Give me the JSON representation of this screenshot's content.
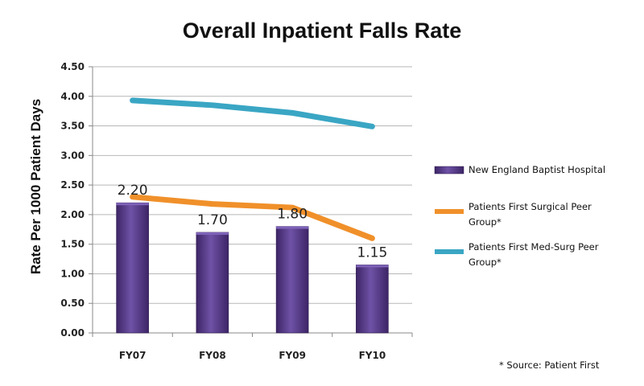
{
  "chart_data": {
    "type": "bar",
    "title": "Overall Inpatient Falls Rate",
    "xlabel": "",
    "ylabel": "Rate Per 1000 Patient Days",
    "ylim": [
      0,
      4.5
    ],
    "yticks": [
      "0.00",
      "0.50",
      "1.00",
      "1.50",
      "2.00",
      "2.50",
      "3.00",
      "3.50",
      "4.00",
      "4.50"
    ],
    "ytick_values": [
      0,
      0.5,
      1,
      1.5,
      2,
      2.5,
      3,
      3.5,
      4,
      4.5
    ],
    "grid": true,
    "legend_position": "right",
    "categories": [
      "FY07",
      "FY08",
      "FY09",
      "FY10"
    ],
    "series": [
      {
        "name": "New England Baptist Hospital",
        "type": "bar",
        "values": [
          2.2,
          1.7,
          1.8,
          1.15
        ],
        "labels": [
          "2.20",
          "1.70",
          "1.80",
          "1.15"
        ],
        "color": "#5b3f8c"
      },
      {
        "name": "Patients First Surgical Peer Group*",
        "type": "line",
        "values": [
          2.3,
          2.18,
          2.12,
          1.6
        ],
        "color": "#f0902a"
      },
      {
        "name": "Patients First Med-Surg Peer Group*",
        "type": "line",
        "values": [
          3.93,
          3.85,
          3.72,
          3.49
        ],
        "color": "#3aa6c4"
      }
    ],
    "legend": [
      [
        "New England Baptist Hospital"
      ],
      [
        "Patients First Surgical Peer",
        "Group*"
      ],
      [
        "Patients First Med-Surg Peer",
        "Group*"
      ]
    ],
    "annotation": "* Source: Patient First"
  }
}
